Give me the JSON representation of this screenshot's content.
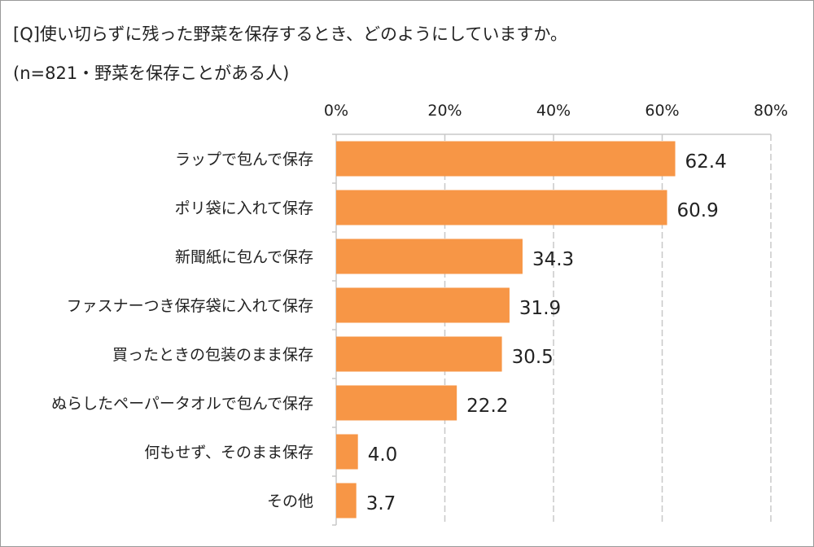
{
  "chart_data": {
    "type": "bar",
    "orientation": "horizontal",
    "title": "[Q]使い切らずに残った野菜を保存するとき、どのようにしていますか。",
    "subtitle": "(n=821・野菜を保存ことがある人)",
    "categories": [
      "ラップで包んで保存",
      "ポリ袋に入れて保存",
      "新聞紙に包んで保存",
      "ファスナーつき保存袋に入れて保存",
      "買ったときの包装のまま保存",
      "ぬらしたペーパータオルで包んで保存",
      "何もせず、そのまま保存",
      "その他"
    ],
    "values": [
      62.4,
      60.9,
      34.3,
      31.9,
      30.5,
      22.2,
      4.0,
      3.7
    ],
    "data_labels": [
      "62.4",
      "60.9",
      "34.3",
      "31.9",
      "30.5",
      "22.2",
      "4.0",
      "3.7"
    ],
    "xlim": [
      0,
      80
    ],
    "x_ticks": [
      0,
      20,
      40,
      60,
      80
    ],
    "x_tick_labels": [
      "0%",
      "20%",
      "40%",
      "60%",
      "80%"
    ],
    "xlabel": "",
    "ylabel": "",
    "grid": true,
    "bar_color": "#F79646"
  }
}
